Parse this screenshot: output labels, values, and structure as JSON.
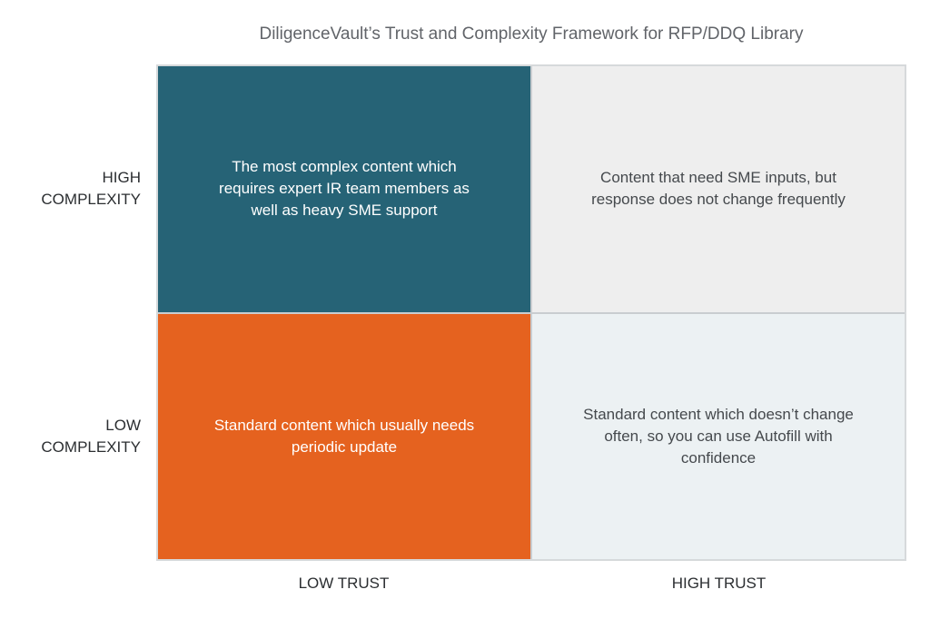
{
  "title": "DiligenceVault’s Trust and Complexity Framework for RFP/DDQ Library",
  "axes": {
    "y_high": "HIGH\nCOMPLEXITY",
    "y_low": "LOW\nCOMPLEXITY",
    "x_low": "LOW TRUST",
    "x_high": "HIGH TRUST"
  },
  "quadrants": {
    "top_left": {
      "label": "The most complex content which\nrequires expert IR team members as\nwell as heavy SME support",
      "bg": "#266376",
      "fg": "#ffffff"
    },
    "top_right": {
      "label": "Content that need SME inputs, but\nresponse does not change frequently",
      "bg": "#eeeeee",
      "fg": "#45494d"
    },
    "bottom_left": {
      "label": "Standard content which usually needs\nperiodic update",
      "bg": "#e5621f",
      "fg": "#ffffff"
    },
    "bottom_right": {
      "label": "Standard content which doesn’t change\noften, so you can use Autofill with\nconfidence",
      "bg": "#ecf1f3",
      "fg": "#45494d"
    }
  },
  "colors": {
    "title": "#616469",
    "axis_label": "#2b2e31",
    "grid_line": "#c9cdd0",
    "outer_border": "#d6d9db",
    "page_background": "#ffffff"
  }
}
